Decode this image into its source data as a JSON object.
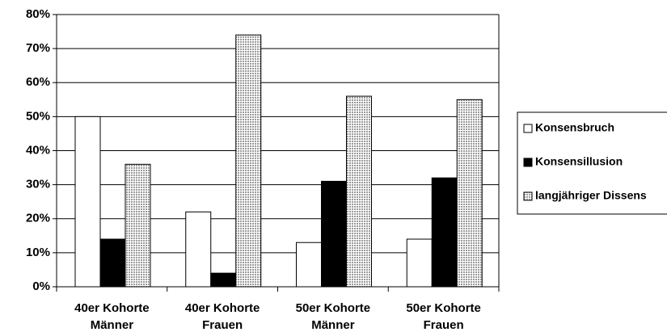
{
  "chart_data": {
    "type": "bar",
    "categories": [
      [
        "40er Kohorte",
        "Männer"
      ],
      [
        "40er Kohorte",
        "Frauen"
      ],
      [
        "50er Kohorte",
        "Männer"
      ],
      [
        "50er Kohorte",
        "Frauen"
      ]
    ],
    "series": [
      {
        "name": "Konsensbruch",
        "color": "#ffffff",
        "values": [
          50,
          22,
          13,
          14
        ]
      },
      {
        "name": "Konsensillusion",
        "color": "#000000",
        "values": [
          14,
          4,
          31,
          32
        ]
      },
      {
        "name": "langjähriger Dissens",
        "color": "#9a9a9a",
        "values": [
          36,
          74,
          56,
          55
        ]
      }
    ],
    "ylim": [
      0,
      80
    ],
    "yticks": [
      {
        "value": 0,
        "label": "0%"
      },
      {
        "value": 10,
        "label": "10%"
      },
      {
        "value": 20,
        "label": "20%"
      },
      {
        "value": 30,
        "label": "30%"
      },
      {
        "value": 40,
        "label": "40%"
      },
      {
        "value": 50,
        "label": "50%"
      },
      {
        "value": 60,
        "label": "60%"
      },
      {
        "value": 70,
        "label": "70%"
      },
      {
        "value": 80,
        "label": "80%"
      }
    ],
    "grid": true
  }
}
